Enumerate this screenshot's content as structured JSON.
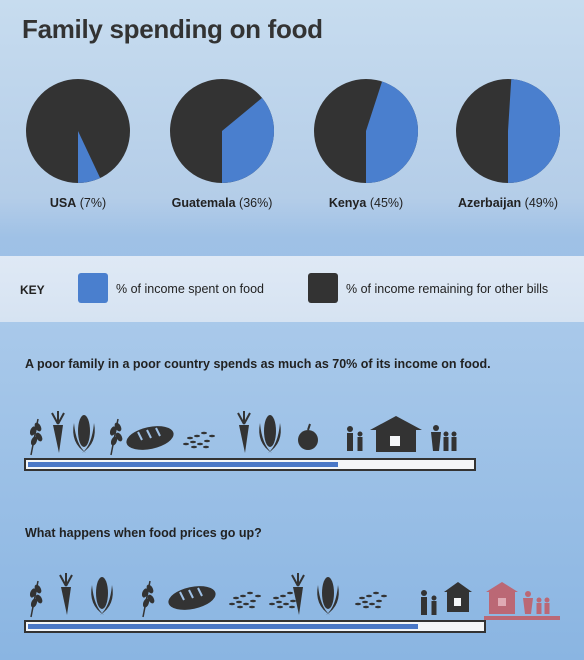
{
  "title": "Family spending on food",
  "chart_data": {
    "type": "pie",
    "title": "Family spending on food",
    "series": [
      {
        "name": "% of income spent on food",
        "color": "#4a7fce"
      },
      {
        "name": "% of income remaining for other bills",
        "color": "#333333"
      }
    ],
    "pies": [
      {
        "country": "USA",
        "value_text": "(7%)",
        "food_share": 7
      },
      {
        "country": "Guatemala",
        "value_text": "(36%)",
        "food_share": 36
      },
      {
        "country": "Kenya",
        "value_text": "(45%)",
        "food_share": 45
      },
      {
        "country": "Azerbaijan",
        "value_text": "(49%)",
        "food_share": 49
      }
    ]
  },
  "key": {
    "label": "KEY",
    "items": [
      {
        "label": "% of income spent on food",
        "color": "#4a7fce"
      },
      {
        "label": "% of income remaining for other bills",
        "color": "#333333"
      }
    ]
  },
  "statement1": "A poor family in a poor country spends as much as 70% of its income on food.",
  "statement2": "What happens when food prices go up?",
  "bar1": {
    "food_share": 0.7
  },
  "bar2": {
    "food_share": 0.86
  },
  "icons_row1": [
    "wheat-icon",
    "carrot-icon",
    "corn-icon",
    "wheat-icon",
    "bread-icon",
    "rice-icon",
    "carrot-icon",
    "corn-icon",
    "apple-icon",
    "family-icon",
    "house-icon",
    "family-icon"
  ],
  "icons_row2": [
    "wheat-icon",
    "carrot-icon",
    "corn-icon",
    "wheat-icon",
    "bread-icon",
    "rice-icon",
    "rice-icon",
    "carrot-icon",
    "corn-icon",
    "rice-icon",
    "family-icon",
    "house-icon",
    "family-icon"
  ],
  "colors": {
    "food": "#4a7fce",
    "other": "#333333",
    "overflow": "#c0606a"
  }
}
